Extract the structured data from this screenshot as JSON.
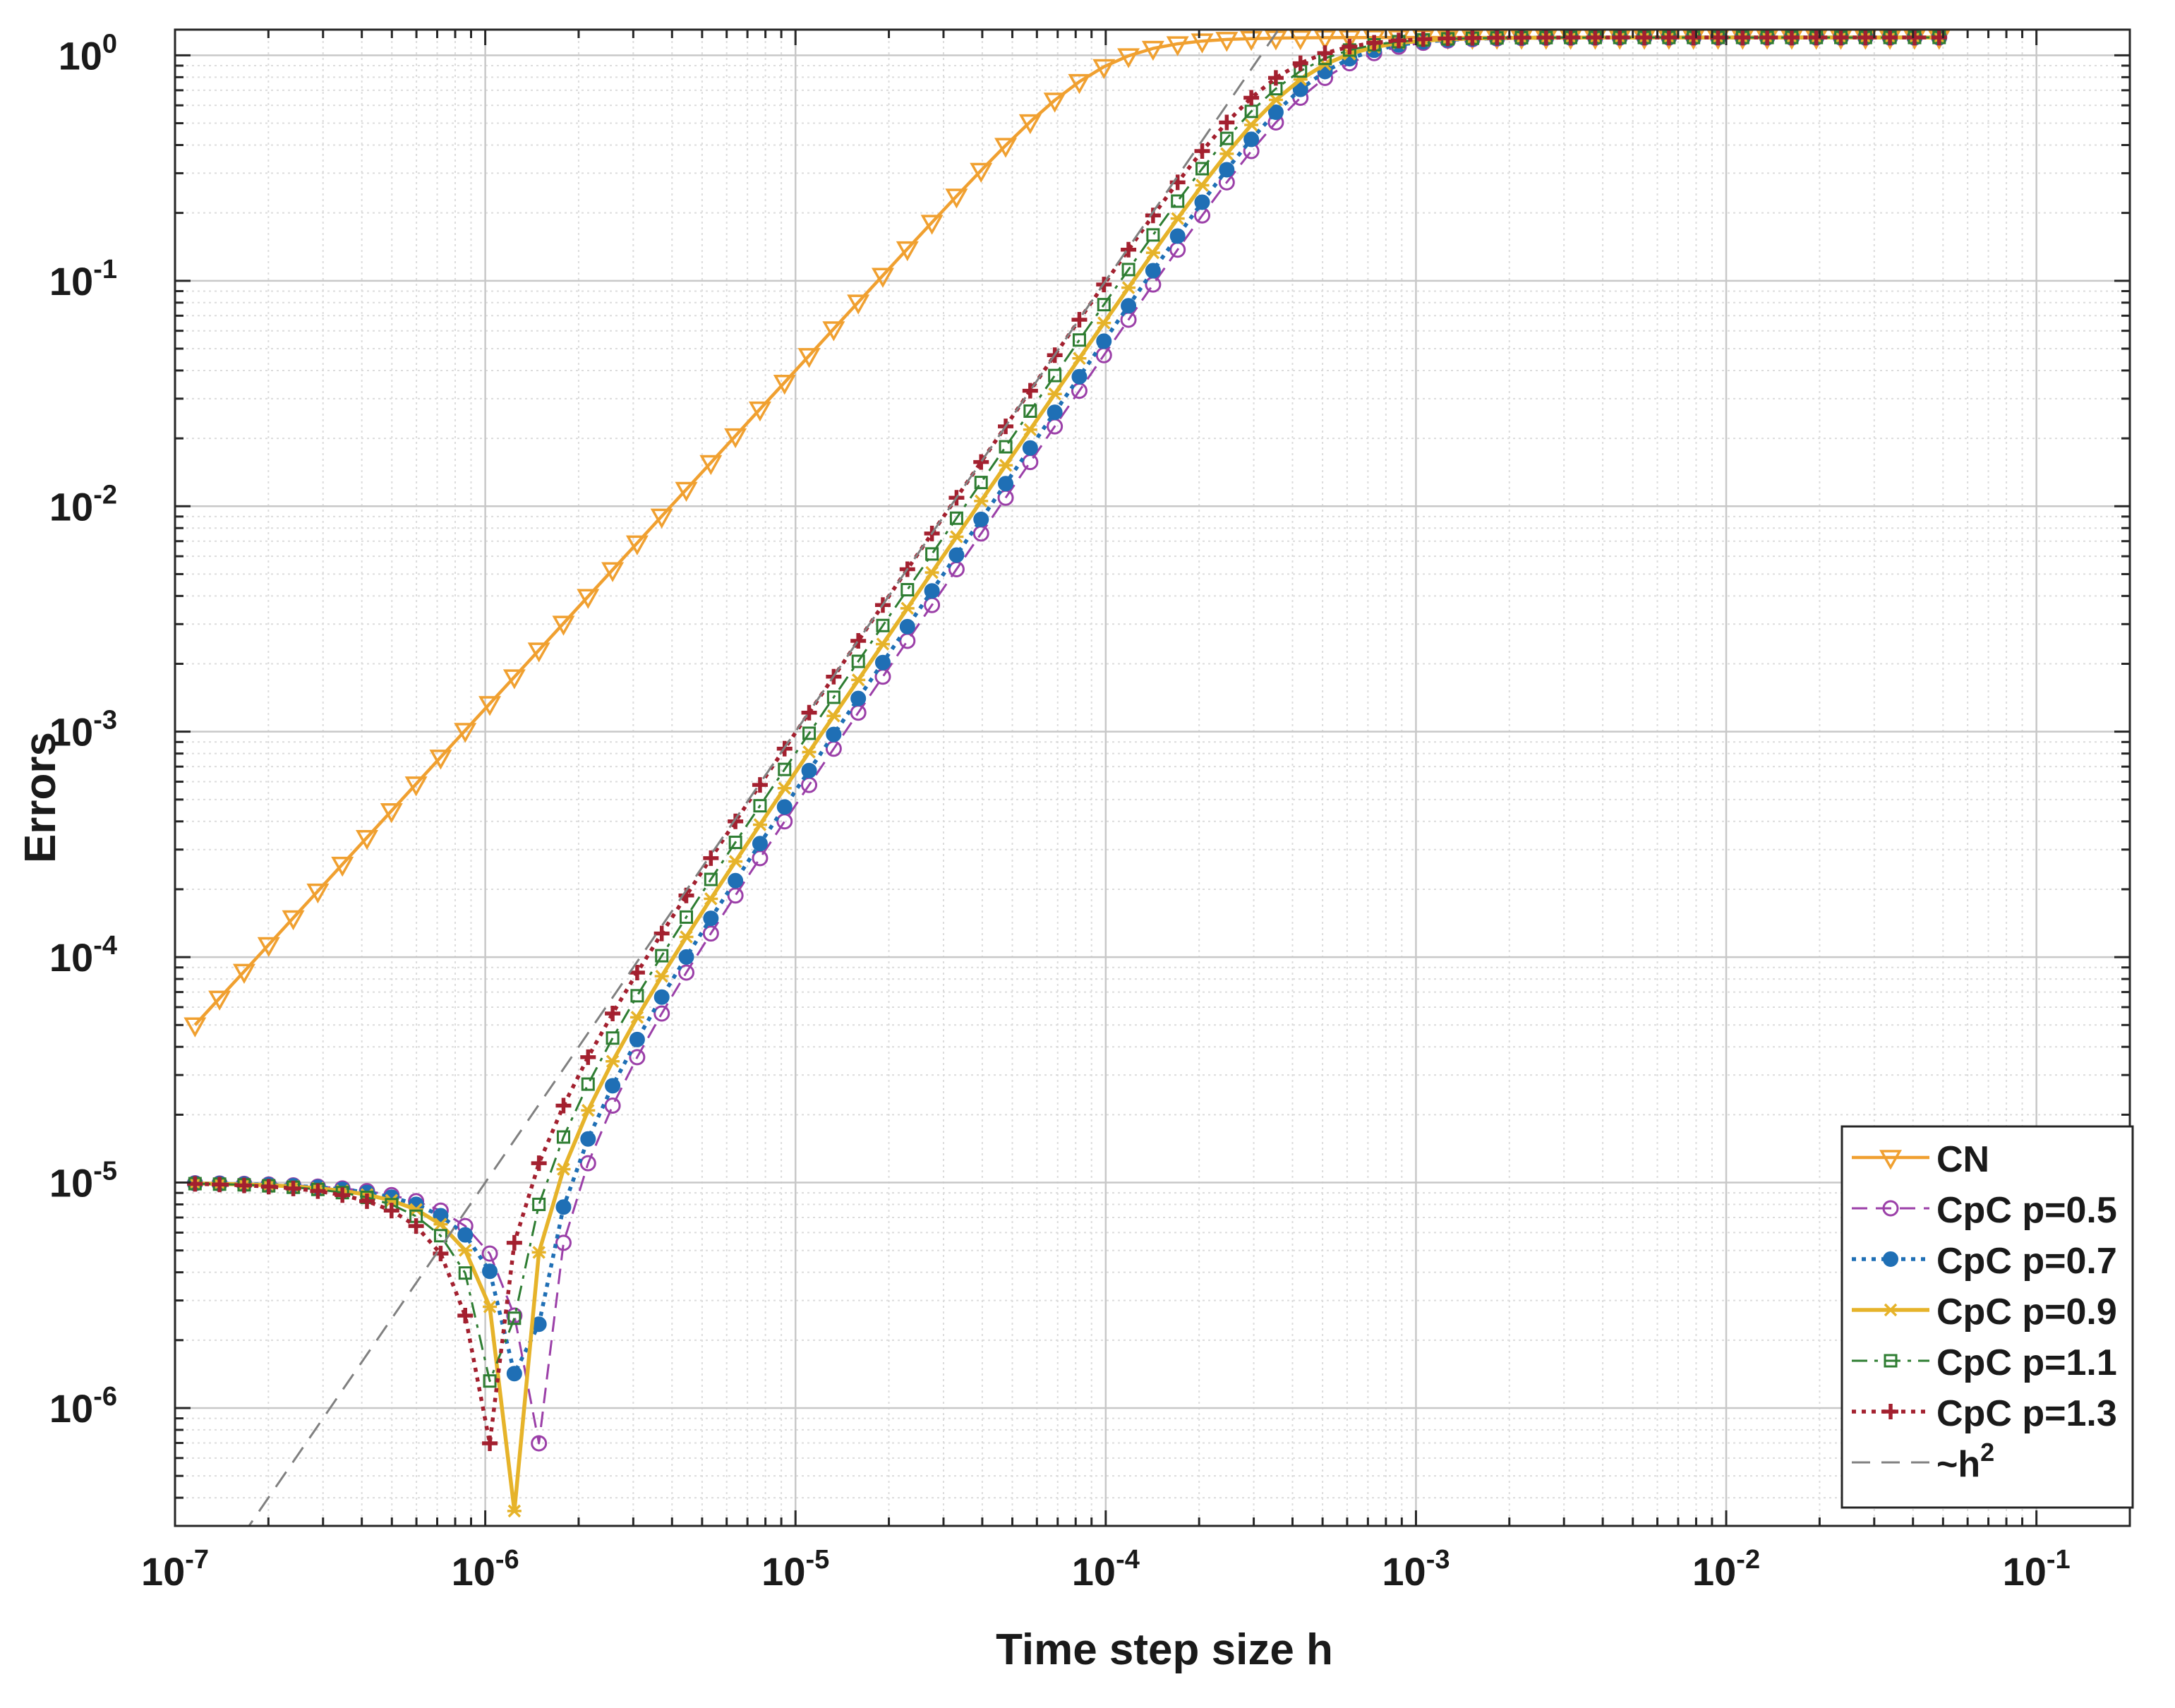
{
  "chart_data": {
    "type": "line",
    "title": "",
    "xlabel": "Time step size h",
    "ylabel": "Errors",
    "xscale": "log",
    "yscale": "log",
    "xlim": [
      1e-07,
      0.2
    ],
    "ylim": [
      3e-07,
      1.3
    ],
    "grid": true,
    "minor_grid": true,
    "legend_position": "bottom-right",
    "x_ticks": [
      {
        "exp": "-7"
      },
      {
        "exp": "-6"
      },
      {
        "exp": "-5"
      },
      {
        "exp": "-4"
      },
      {
        "exp": "-3"
      },
      {
        "exp": "-2"
      },
      {
        "exp": "-1"
      }
    ],
    "y_ticks": [
      {
        "exp": "0"
      },
      {
        "exp": "-1"
      },
      {
        "exp": "-2"
      },
      {
        "exp": "-3"
      },
      {
        "exp": "-4"
      },
      {
        "exp": "-5"
      },
      {
        "exp": "-6"
      }
    ],
    "tick_base": "10",
    "x_start": 1.16e-07,
    "x_ratio": 1.2,
    "n_points": 72,
    "series": [
      {
        "name": "CN",
        "label": "CN",
        "color": "#f0a030",
        "dash": "",
        "marker": "triangle-down",
        "stroke_weight": "medium",
        "model": {
          "kind": "cn",
          "anchor_x": 1.16e-07,
          "anchor_y": 5e-05,
          "order": 1.5,
          "sat_y": 1.2
        }
      },
      {
        "name": "CpC p=0.5",
        "label": "CpC p=0.5",
        "color": "#9b3fa8",
        "dash": "dash",
        "marker": "open-circle",
        "stroke_weight": "thin",
        "model": {
          "kind": "cpc",
          "zero_h": 1.44e-06,
          "coef": 4.5e-05,
          "plateau": 1e-05,
          "sat_y": 1.2,
          "sat_h": 0.003
        }
      },
      {
        "name": "CpC p=0.7",
        "label": "CpC p=0.7",
        "color": "#1f6fb5",
        "dash": "dot",
        "marker": "filled-circle",
        "stroke_weight": "bold",
        "model": {
          "kind": "cpc",
          "zero_h": 1.34e-06,
          "coef": 5e-05,
          "plateau": 1e-05,
          "sat_y": 1.2,
          "sat_h": 0.003
        }
      },
      {
        "name": "CpC p=0.9",
        "label": "CpC p=0.9",
        "color": "#e6b32a",
        "dash": "",
        "marker": "star",
        "stroke_weight": "bold",
        "model": {
          "kind": "cpc",
          "zero_h": 1.22e-06,
          "coef": 5.5e-05,
          "plateau": 1e-05,
          "sat_y": 1.2,
          "sat_h": 0.003
        }
      },
      {
        "name": "CpC p=1.1",
        "label": "CpC p=1.1",
        "color": "#2e7d32",
        "dash": "dashdot",
        "marker": "open-square",
        "stroke_weight": "thin",
        "model": {
          "kind": "cpc",
          "zero_h": 1.11e-06,
          "coef": 6e-05,
          "plateau": 1e-05,
          "sat_y": 1.2,
          "sat_h": 0.003
        }
      },
      {
        "name": "CpC p=1.3",
        "label": "CpC p=1.3",
        "color": "#a3202f",
        "dash": "dot",
        "marker": "plus",
        "stroke_weight": "bold",
        "model": {
          "kind": "cpc",
          "zero_h": 1e-06,
          "coef": 6.6e-05,
          "plateau": 1e-05,
          "sat_y": 1.2,
          "sat_h": 0.003
        }
      },
      {
        "name": "~h^2",
        "label": "~h",
        "label_sup": "2",
        "color": "#808080",
        "dash": "longdash",
        "marker": "none",
        "stroke_weight": "thin",
        "model": {
          "kind": "ref",
          "coef": 10000000.0,
          "power": 2
        }
      }
    ]
  }
}
